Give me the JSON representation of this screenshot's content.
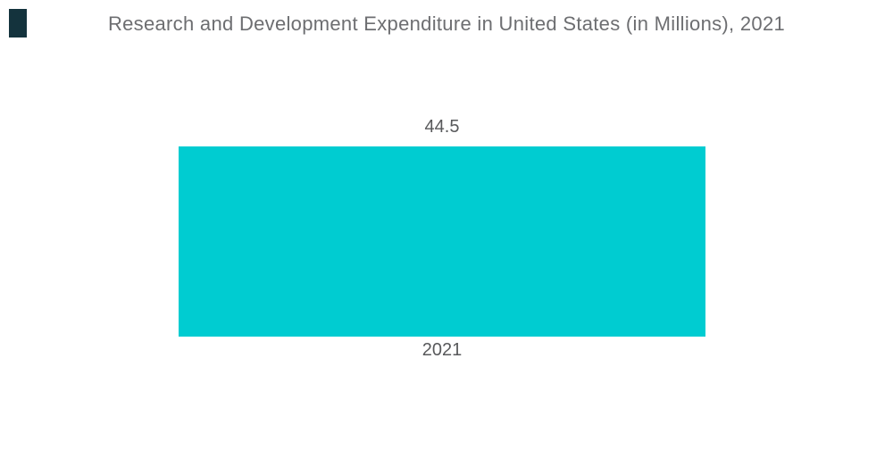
{
  "chart_data": {
    "type": "bar",
    "title": "Research and Development Expenditure in United States (in Millions), 2021",
    "categories": [
      "2021"
    ],
    "values": [
      44.5
    ],
    "value_labels": [
      "44.5"
    ],
    "series": [
      {
        "name": "Research and Development Expenditure",
        "values": [
          44.5
        ]
      }
    ],
    "xlabel": "",
    "ylabel": "",
    "axes_visible": false,
    "grid": false,
    "legend": false,
    "orientation": "vertical",
    "bar_color": "#00ccd1"
  },
  "colors": {
    "background": "#ffffff",
    "bar": "#00ccd1",
    "title_text": "#6d6e71",
    "label_text": "#58595b",
    "logo_mark": "#14333d"
  },
  "logo": {
    "icon": "brand-logo-mark"
  }
}
